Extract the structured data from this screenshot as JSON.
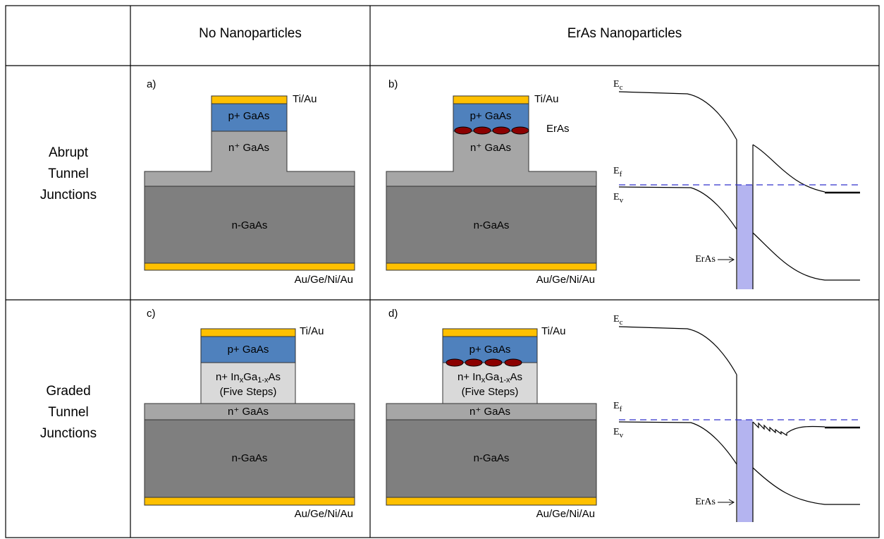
{
  "columns": [
    "No Nanoparticles",
    "ErAs Nanoparticles"
  ],
  "rows": [
    {
      "label": [
        "Abrupt",
        "Tunnel",
        "Junctions"
      ],
      "panels": [
        {
          "letter": "a)",
          "top_contact": "Ti/Au",
          "p_layer": "p+ GaAs",
          "n_layer": "n⁺ GaAs",
          "substrate": "n-GaAs",
          "bottom_contact": "Au/Ge/Ni/Au"
        },
        {
          "letter": "b)",
          "top_contact": "Ti/Au",
          "p_layer": "p+ GaAs",
          "particles": "ErAs",
          "n_layer": "n⁺ GaAs",
          "substrate": "n-GaAs",
          "bottom_contact": "Au/Ge/Ni/Au"
        }
      ],
      "band_diagram": {
        "ec": {
          "symbol": "E",
          "subscript": "c"
        },
        "ef": {
          "symbol": "E",
          "subscript": "f"
        },
        "ev": {
          "symbol": "E",
          "subscript": "v"
        },
        "particles": "ErAs"
      }
    },
    {
      "label": [
        "Graded",
        "Tunnel",
        "Junctions"
      ],
      "panels": [
        {
          "letter": "c)",
          "top_contact": "Ti/Au",
          "p_layer": "p+ GaAs",
          "graded_layer": {
            "parts": [
              "n+ In",
              "x",
              "Ga",
              "1-x",
              "As"
            ],
            "note": "(Five Steps)"
          },
          "n_layer": "n⁺ GaAs",
          "substrate": "n-GaAs",
          "bottom_contact": "Au/Ge/Ni/Au"
        },
        {
          "letter": "d)",
          "top_contact": "Ti/Au",
          "p_layer": "p+ GaAs",
          "graded_layer": {
            "parts": [
              "n+ In",
              "x",
              "Ga",
              "1-x",
              "As"
            ],
            "note": "(Five Steps)"
          },
          "n_layer": "n⁺ GaAs",
          "substrate": "n-GaAs",
          "bottom_contact": "Au/Ge/Ni/Au"
        }
      ],
      "band_diagram": {
        "ec": {
          "symbol": "E",
          "subscript": "c"
        },
        "ef": {
          "symbol": "E",
          "subscript": "f"
        },
        "ev": {
          "symbol": "E",
          "subscript": "v"
        },
        "particles": "ErAs"
      }
    }
  ]
}
